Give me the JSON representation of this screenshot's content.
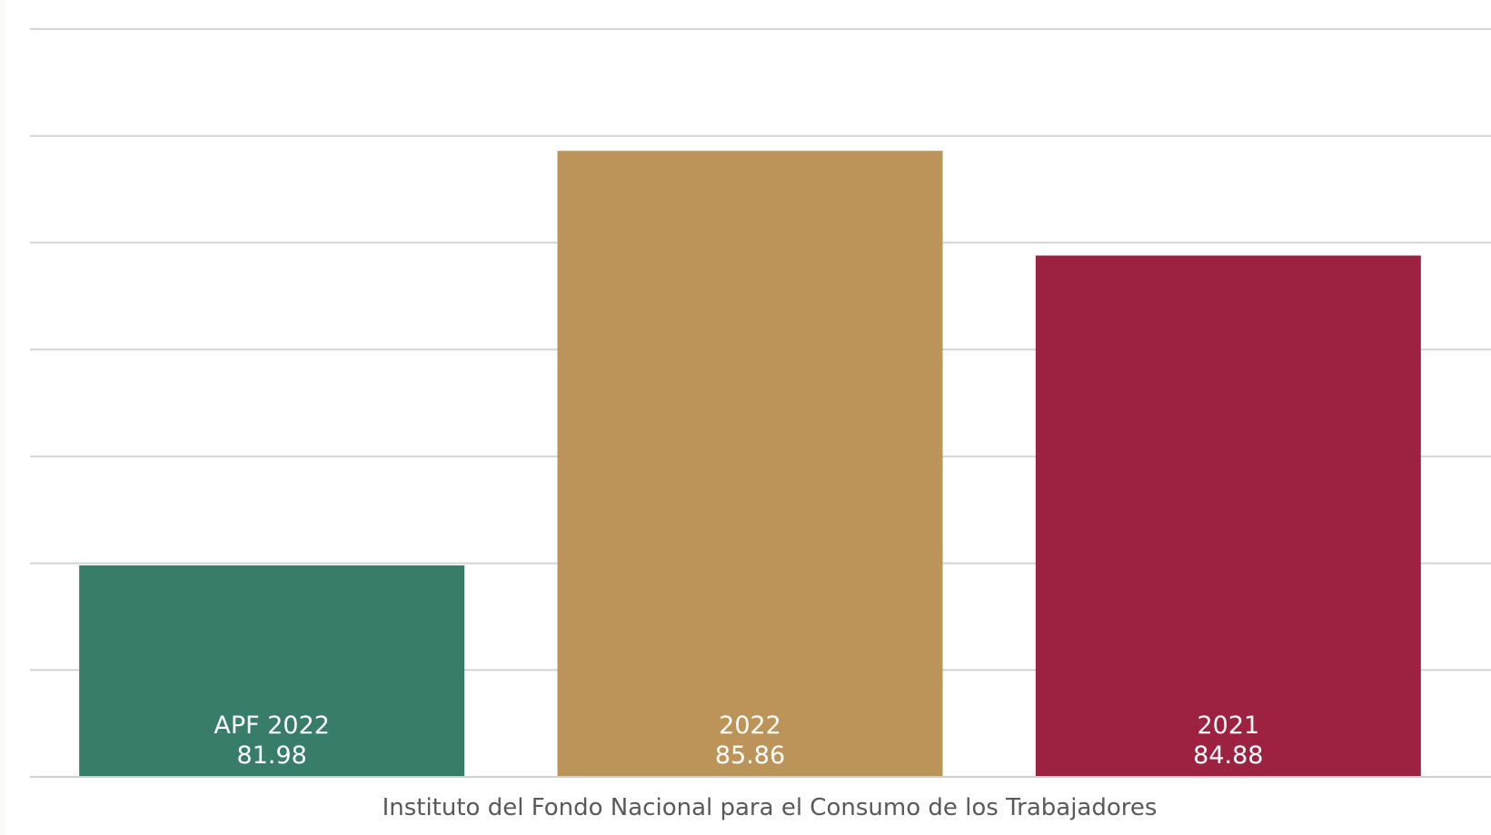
{
  "chart_data": {
    "type": "bar",
    "title": "",
    "xlabel": "",
    "ylabel": "",
    "category_label": "Instituto del Fondo Nacional para el Consumo de los Trabajadores",
    "series": [
      {
        "name": "APF 2022",
        "value": 81.98,
        "value_label": "81.98",
        "color": "#387d69"
      },
      {
        "name": "2022",
        "value": 85.86,
        "value_label": "85.86",
        "color": "#bc9359"
      },
      {
        "name": "2021",
        "value": 84.88,
        "value_label": "84.88",
        "color": "#9d2241"
      }
    ],
    "ylim": [
      80,
      87
    ],
    "gridline_step": 1,
    "grid": true,
    "y_tick_labels_visible": false,
    "legend": "none"
  }
}
